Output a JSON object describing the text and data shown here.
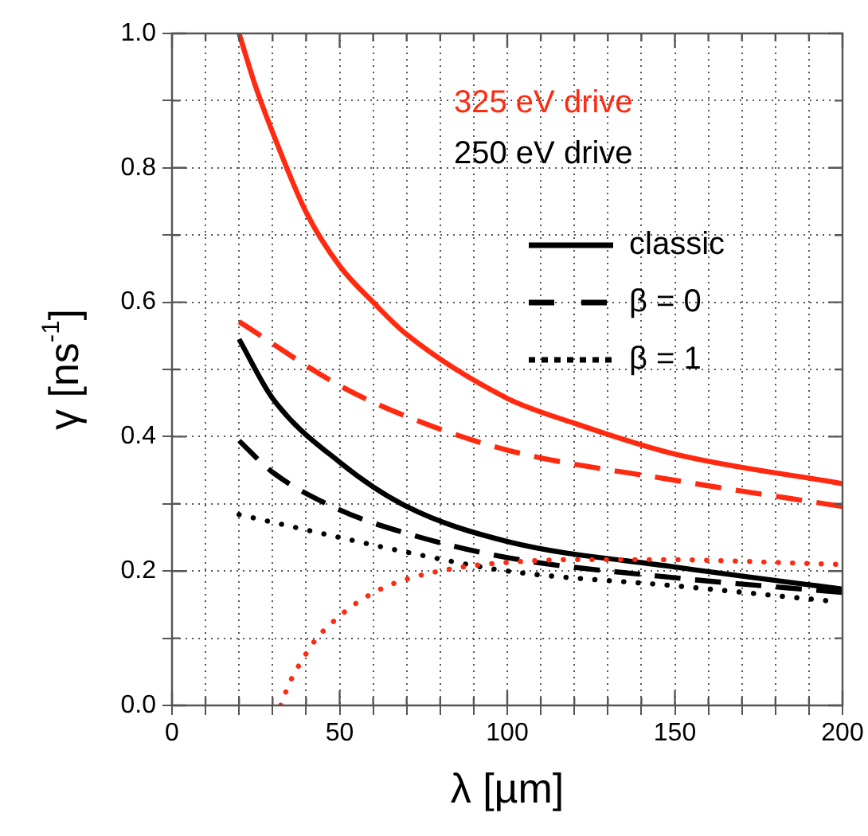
{
  "chart_data": {
    "type": "line",
    "xlabel": "λ [µm]",
    "ylabel": "γ [ns$^{-1}$]",
    "xlim": [
      0,
      200
    ],
    "ylim": [
      0,
      1.0
    ],
    "xticks": [
      0,
      {
        "value": 10,
        "label": null
      },
      {
        "value": 20,
        "label": null
      },
      {
        "value": 30,
        "label": null
      },
      {
        "value": 40,
        "label": null
      },
      50,
      {
        "value": 60,
        "label": null
      },
      {
        "value": 70,
        "label": null
      },
      {
        "value": 80,
        "label": null
      },
      {
        "value": 90,
        "label": null
      },
      100,
      {
        "value": 110,
        "label": null
      },
      {
        "value": 120,
        "label": null
      },
      {
        "value": 130,
        "label": null
      },
      {
        "value": 140,
        "label": null
      },
      150,
      {
        "value": 160,
        "label": null
      },
      {
        "value": 170,
        "label": null
      },
      {
        "value": 180,
        "label": null
      },
      {
        "value": 190,
        "label": null
      },
      200
    ],
    "yticks": [
      {
        "value": 0,
        "label": "0.0"
      },
      {
        "value": 0.1,
        "label": null
      },
      {
        "value": 0.2,
        "label": "0.2"
      },
      {
        "value": 0.3,
        "label": null
      },
      {
        "value": 0.4,
        "label": "0.4"
      },
      {
        "value": 0.5,
        "label": null
      },
      {
        "value": 0.6,
        "label": "0.6"
      },
      {
        "value": 0.7,
        "label": null
      },
      {
        "value": 0.8,
        "label": "0.8"
      },
      {
        "value": 0.9,
        "label": null
      },
      {
        "value": 1.0,
        "label": "1.0"
      }
    ],
    "grid": true,
    "legend": "top right",
    "marker": "none",
    "annotations": [
      "325 eV drive",
      "250 eV drive"
    ],
    "series": [
      {
        "color": "#ff2a10",
        "line_style": "solid",
        "x": [
          20,
          25,
          30,
          40,
          50,
          60,
          70,
          100,
          120,
          150,
          200
        ],
        "values": [
          1.0,
          0.92,
          0.853,
          0.734,
          0.654,
          0.6,
          0.552,
          0.457,
          0.42,
          0.374,
          0.33
        ]
      },
      {
        "color": "#ff2a10",
        "line_style": "dashed",
        "x": [
          20,
          50,
          70,
          100,
          150,
          200
        ],
        "values": [
          0.571,
          0.476,
          0.43,
          0.38,
          0.335,
          0.296
        ]
      },
      {
        "color": "#ff2a10",
        "line_style": "dotted",
        "x": [
          32.4,
          35.2,
          39,
          43.2,
          48.6,
          54.6,
          61,
          68.1,
          83,
          98,
          121,
          144,
          198
        ],
        "values": [
          0,
          0.035,
          0.069,
          0.1,
          0.127,
          0.151,
          0.17,
          0.185,
          0.203,
          0.212,
          0.217,
          0.217,
          0.21
        ]
      },
      {
        "name": "classic",
        "color": "#000000",
        "line_style": "solid",
        "x": [
          20,
          30,
          50,
          70,
          100,
          150,
          200
        ],
        "values": [
          0.545,
          0.457,
          0.362,
          0.296,
          0.244,
          0.206,
          0.173
        ]
      },
      {
        "name": "β = 0",
        "color": "#000000",
        "line_style": "dashed",
        "x": [
          20,
          30,
          50,
          70,
          100,
          150,
          200
        ],
        "values": [
          0.394,
          0.347,
          0.291,
          0.256,
          0.22,
          0.19,
          0.168
        ]
      },
      {
        "name": "β = 1",
        "color": "#000000",
        "line_style": "dotted",
        "x": [
          20,
          50,
          70,
          100,
          150,
          195
        ],
        "values": [
          0.284,
          0.25,
          0.228,
          0.2,
          0.178,
          0.156
        ]
      }
    ]
  }
}
